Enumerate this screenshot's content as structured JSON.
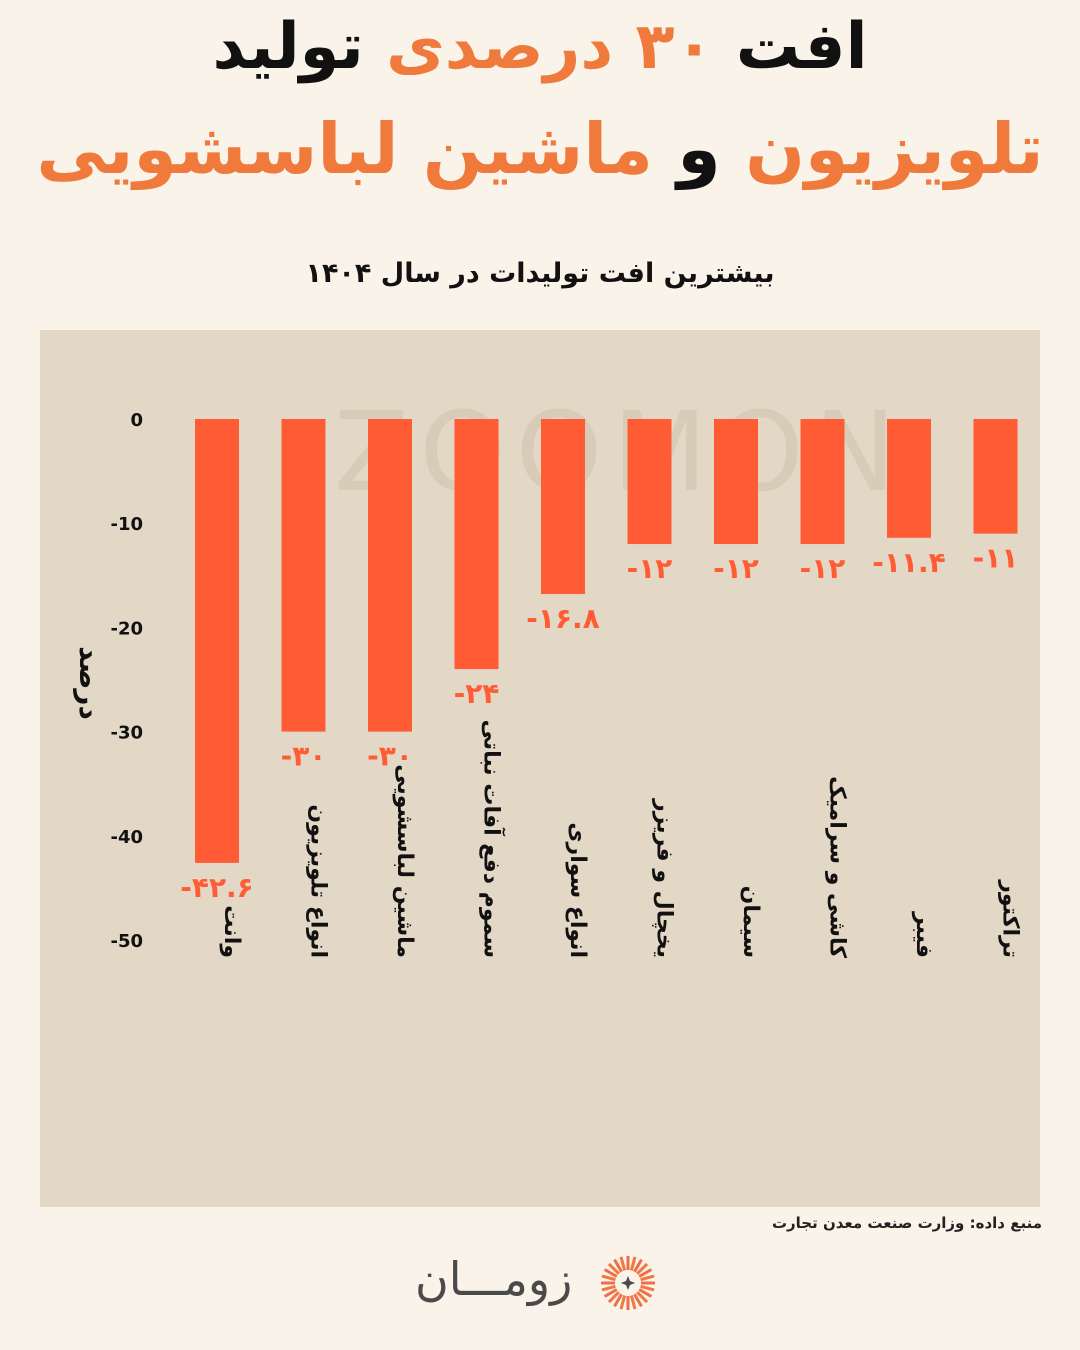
{
  "headline": {
    "line1": [
      {
        "text": "افت ",
        "tone": "dark"
      },
      {
        "text": "۳۰ درصدی",
        "tone": "accent"
      },
      {
        "text": " تولید",
        "tone": "dark"
      }
    ],
    "line2": [
      {
        "text": "تلویزیون",
        "tone": "accent"
      },
      {
        "text": " و ",
        "tone": "dark"
      },
      {
        "text": "ماشین لباسشویی",
        "tone": "accent"
      }
    ]
  },
  "subtitle": "بیشترین افت تولیدات در سال ۱۴۰۴",
  "source": "منبع داده: وزارت صنعت معدن تجارت",
  "logo": {
    "text": "زومـــان",
    "icon": "sun-burst-icon"
  },
  "watermark": "ZOOMON",
  "colors": {
    "bar": "#ff5c35",
    "label": "#ff5c35",
    "accent": "#ef7a3c",
    "plot_bg": "#e3d7c5"
  },
  "chart_data": {
    "type": "bar",
    "ylabel": "درصد",
    "ylim": [
      -50,
      0
    ],
    "yticks": [
      0,
      -10,
      -20,
      -30,
      -40,
      -50
    ],
    "ytick_labels": [
      "0",
      "-10",
      "-20",
      "-30",
      "-40",
      "-50"
    ],
    "categories": [
      "وانت",
      "انواع تلویزیون",
      "ماشین لباسشویی",
      "سموم دفع آفات نباتی",
      "انواع سواری",
      "یخچال و فریزر",
      "سیمان",
      "کاشی و سرامیک",
      "فیبر",
      "تراکتور"
    ],
    "values": [
      -42.6,
      -30,
      -30,
      -24,
      -16.8,
      -12,
      -12,
      -12,
      -11.4,
      -11
    ],
    "value_labels": [
      "-۴۲.۶",
      "-۳۰",
      "-۳۰",
      "-۲۴",
      "-۱۶.۸",
      "-۱۲",
      "-۱۲",
      "-۱۲",
      "-۱۱.۴",
      "-۱۱"
    ],
    "grid": false,
    "legend": "none"
  }
}
